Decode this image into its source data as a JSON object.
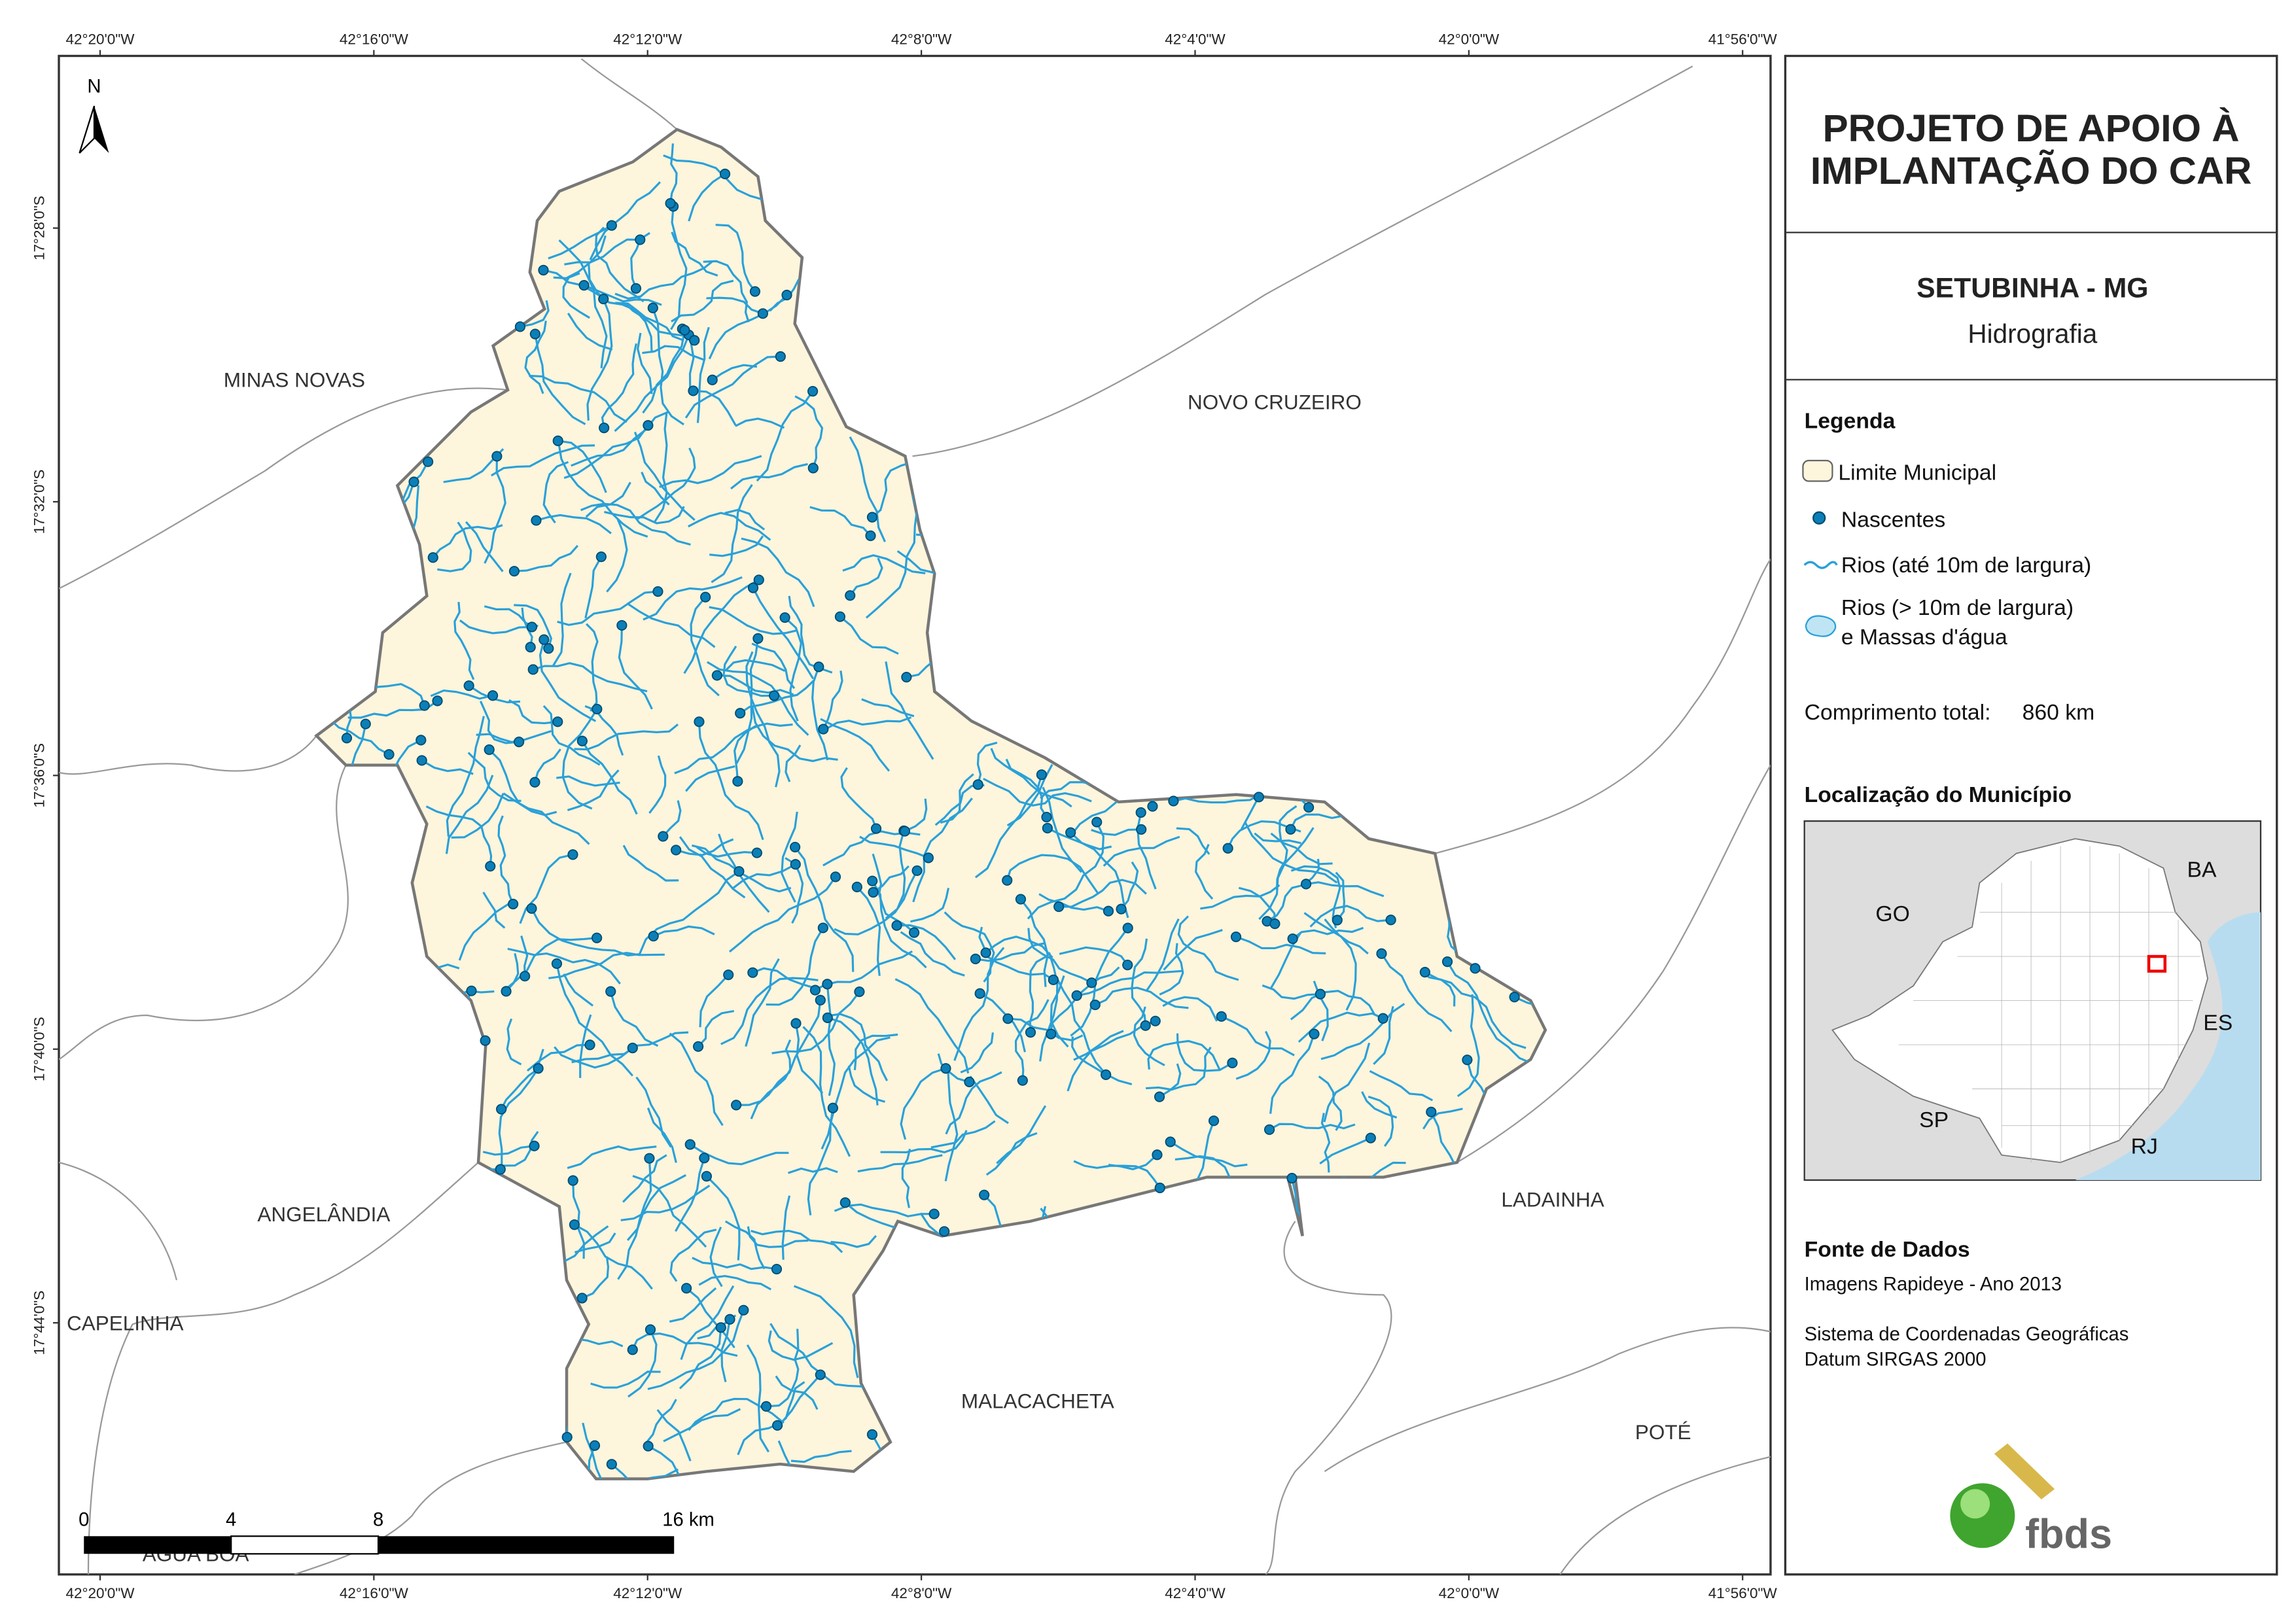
{
  "map": {
    "top_coords": [
      "42°20'0\"W",
      "42°16'0\"W",
      "42°12'0\"W",
      "42°8'0\"W",
      "42°4'0\"W",
      "42°0'0\"W",
      "41°56'0\"W"
    ],
    "bottom_coords": [
      "42°20'0\"W",
      "42°16'0\"W",
      "42°12'0\"W",
      "42°8'0\"W",
      "42°4'0\"W",
      "42°0'0\"W",
      "41°56'0\"W"
    ],
    "left_coords": [
      "17°28'0\"S",
      "17°32'0\"S",
      "17°36'0\"S",
      "17°40'0\"S",
      "17°44'0\"S"
    ],
    "places": [
      "MINAS NOVAS",
      "NOVO CRUZEIRO",
      "ANGELÂNDIA",
      "CAPELINHA",
      "LADAINHA",
      "MALACACHETA",
      "POTÉ",
      "ÁGUA BOA"
    ],
    "north": "N",
    "scale_labels": [
      "0",
      "4",
      "8",
      "16 km"
    ]
  },
  "panel": {
    "title_lines": [
      "PROJETO DE APOIO À",
      "IMPLANTAÇÃO DO CAR"
    ],
    "subtitle": "SETUBINHA - MG",
    "theme": "Hidrografia",
    "legend": {
      "title": "Legenda",
      "items": [
        "Limite Municipal",
        "Nascentes",
        "Rios (até 10m de largura)",
        "Rios (> 10m de largura)",
        "e Massas d'água"
      ]
    },
    "length": {
      "label": "Comprimento total:",
      "value": "860 km"
    },
    "location": {
      "title": "Localização do Município",
      "states": [
        "GO",
        "BA",
        "ES",
        "SP",
        "RJ"
      ]
    },
    "sources": {
      "title": "Fonte de Dados",
      "lines": [
        "Imagens Rapideye - Ano 2013",
        "Sistema de Coordenadas Geográficas",
        "Datum SIRGAS 2000"
      ]
    },
    "logo": "fbds"
  }
}
